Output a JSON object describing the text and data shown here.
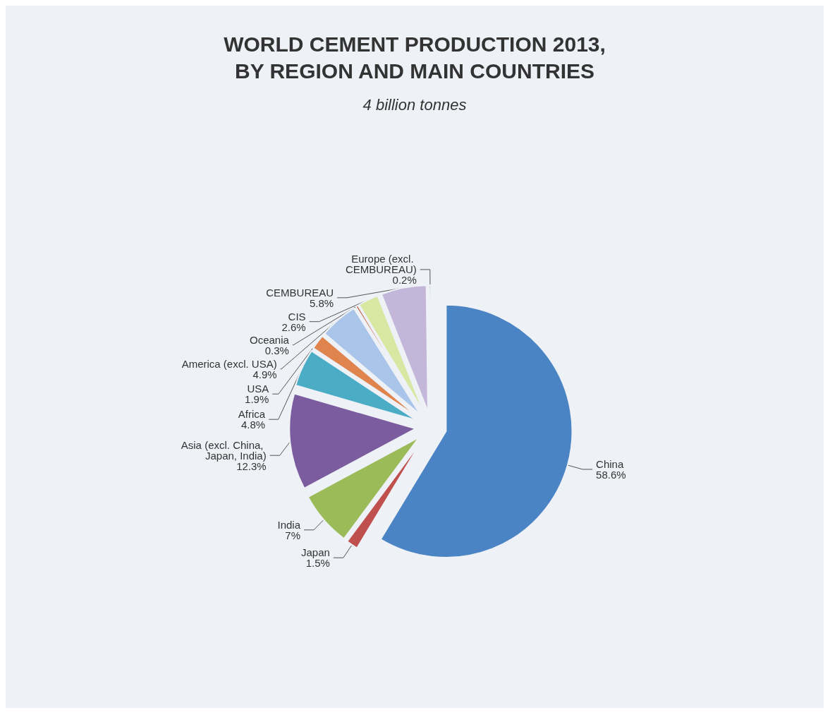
{
  "chart_data": {
    "type": "pie",
    "title": "WORLD CEMENT PRODUCTION 2013,\nBY REGION AND MAIN COUNTRIES",
    "subtitle": "4 billion tonnes",
    "categories": [
      "China",
      "Japan",
      "India",
      "Asia (excl. China, Japan, India)",
      "Africa",
      "USA",
      "America (excl. USA)",
      "Oceania",
      "CIS",
      "CEMBUREAU",
      "Europe (excl. CEMBUREAU)"
    ],
    "values": [
      58.6,
      1.5,
      7,
      12.3,
      4.8,
      1.9,
      4.9,
      0.3,
      2.6,
      5.8,
      0.2
    ],
    "value_labels": [
      "58.6%",
      "1.5%",
      "7%",
      "12.3%",
      "4.8%",
      "1.9%",
      "4.9%",
      "0.3%",
      "2.6%",
      "5.8%",
      "0.2%"
    ],
    "colors": [
      "#4a84c4",
      "#c0504d",
      "#9bbb59",
      "#7b5c9e",
      "#4bacc6",
      "#e0844e",
      "#a9c5ea",
      "#c86a4a",
      "#d8e7a2",
      "#c3b6d8",
      "#5b8fc8"
    ]
  }
}
